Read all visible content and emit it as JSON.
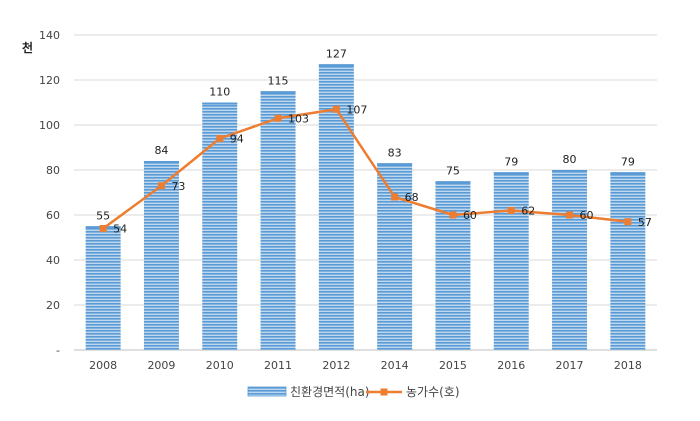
{
  "chart_data": {
    "type": "bar",
    "y_unit_label": "천",
    "categories": [
      "2008",
      "2009",
      "2010",
      "2011",
      "2012",
      "2014",
      "2015",
      "2016",
      "2017",
      "2018"
    ],
    "series": [
      {
        "name": "친환경면적(ha)",
        "type": "bar",
        "color": "#5b9bd5",
        "values": [
          55,
          84,
          110,
          115,
          127,
          83,
          75,
          79,
          80,
          79
        ]
      },
      {
        "name": "농가수(호)",
        "type": "line",
        "color": "#ed7d31",
        "values": [
          54,
          73,
          94,
          103,
          107,
          68,
          60,
          62,
          60,
          57
        ]
      }
    ],
    "ylim": [
      0,
      140
    ],
    "yticks": [
      0,
      20,
      40,
      60,
      80,
      100,
      120,
      140
    ],
    "ytick_labels": [
      "-",
      "20",
      "40",
      "60",
      "80",
      "100",
      "120",
      "140"
    ],
    "grid": true,
    "legend_position": "bottom"
  }
}
